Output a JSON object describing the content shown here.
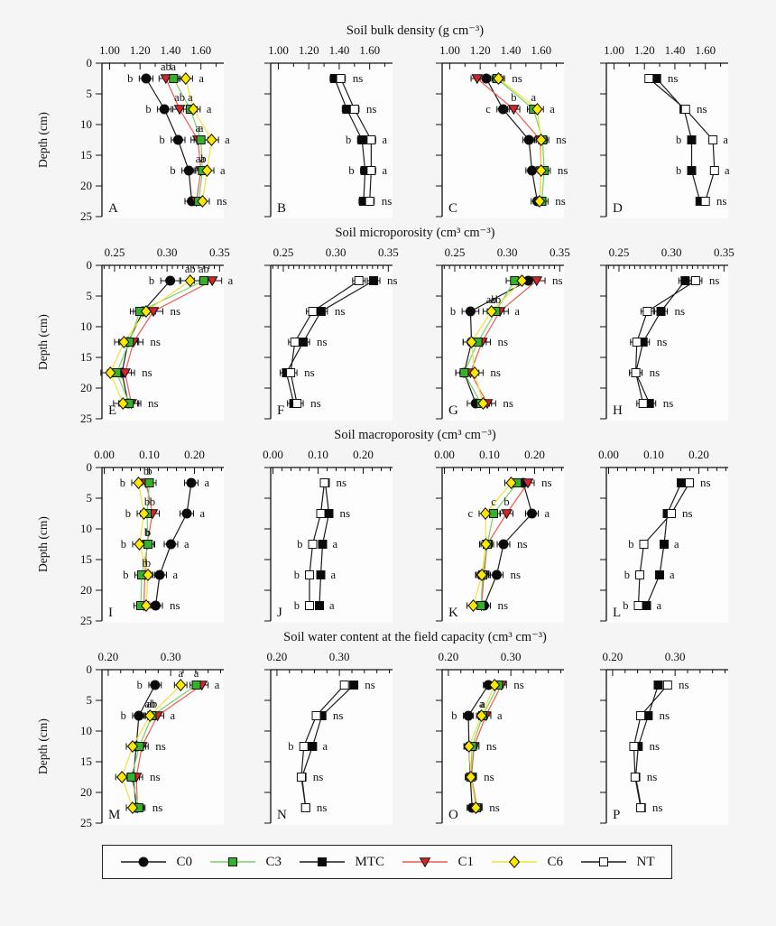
{
  "figure": {
    "ylabel": "Depth (cm)",
    "depth_ticks": [
      0,
      5,
      10,
      15,
      20,
      25
    ],
    "depths": [
      2.5,
      7.5,
      12.5,
      17.5,
      22.5
    ]
  },
  "series_style": {
    "C0": {
      "marker": "circle",
      "fill": "#0a0a0a",
      "line": "#1a1a1a"
    },
    "C1": {
      "marker": "triangle-down",
      "fill": "#d8232a",
      "line": "#ef5a50"
    },
    "C3": {
      "marker": "square",
      "fill": "#33b32a",
      "line": "#79d06a"
    },
    "C6": {
      "marker": "diamond",
      "fill": "#ffe800",
      "line": "#f0e13c"
    },
    "MTC": {
      "marker": "square",
      "fill": "#0a0a0a",
      "line": "#1a1a1a"
    },
    "NT": {
      "marker": "square-open",
      "fill": "#ffffff",
      "line": "#1a1a1a"
    }
  },
  "legend": {
    "items": [
      {
        "key": "C0",
        "label": "C0"
      },
      {
        "key": "C3",
        "label": "C3"
      },
      {
        "key": "MTC",
        "label": "MTC"
      },
      {
        "key": "C1",
        "label": "C1"
      },
      {
        "key": "C6",
        "label": "C6"
      },
      {
        "key": "NT",
        "label": "NT"
      }
    ]
  },
  "chart_data": [
    {
      "type": "line",
      "title": "Soil bulk density (g cm⁻³)",
      "xticks": [
        1.0,
        1.2,
        1.4,
        1.6
      ],
      "xlim": [
        0.95,
        1.75
      ],
      "minor_step": 0.1,
      "tick_decimals": 2,
      "panels": [
        {
          "id": "A",
          "series": [
            "C0",
            "C1",
            "C3",
            "C6"
          ],
          "xerr": 0.045,
          "values": {
            "C0": [
              1.24,
              1.36,
              1.45,
              1.52,
              1.54
            ],
            "C1": [
              1.37,
              1.46,
              1.58,
              1.6,
              1.57
            ],
            "C3": [
              1.42,
              1.53,
              1.6,
              1.61,
              1.585
            ],
            "C6": [
              1.5,
              1.55,
              1.67,
              1.64,
              1.61
            ]
          },
          "sig": [
            [
              "b",
              "ab",
              "a",
              "a"
            ],
            [
              "b",
              "ab",
              "a",
              "a"
            ],
            [
              "b",
              "a",
              "a",
              "a"
            ],
            [
              "b",
              "ab",
              "a",
              "a"
            ],
            "ns"
          ]
        },
        {
          "id": "B",
          "series": [
            "MTC",
            "NT"
          ],
          "xerr": 0.03,
          "values": {
            "MTC": [
              1.37,
              1.45,
              1.55,
              1.57,
              1.56
            ],
            "NT": [
              1.41,
              1.5,
              1.61,
              1.61,
              1.6
            ]
          },
          "sig": [
            "ns",
            "ns",
            [
              "b",
              "a"
            ],
            [
              "b",
              "a"
            ],
            "ns"
          ]
        },
        {
          "id": "C",
          "series": [
            "C0",
            "C1",
            "C3",
            "C6"
          ],
          "xerr": 0.04,
          "values": {
            "C0": [
              1.24,
              1.35,
              1.52,
              1.54,
              1.575
            ],
            "C1": [
              1.18,
              1.42,
              1.595,
              1.6,
              1.59
            ],
            "C3": [
              1.31,
              1.55,
              1.61,
              1.62,
              1.605
            ],
            "C6": [
              1.32,
              1.575,
              1.6,
              1.6,
              1.59
            ]
          },
          "sig": [
            "ns",
            [
              "c",
              "b",
              "a",
              "a"
            ],
            "ns",
            "ns",
            "ns"
          ]
        },
        {
          "id": "D",
          "series": [
            "MTC",
            "NT"
          ],
          "xerr": 0.025,
          "values": {
            "MTC": [
              1.28,
              1.46,
              1.51,
              1.51,
              1.565
            ],
            "NT": [
              1.23,
              1.47,
              1.65,
              1.66,
              1.6
            ]
          },
          "sig": [
            "ns",
            "ns",
            [
              "b",
              "a"
            ],
            [
              "b",
              "a"
            ],
            "ns"
          ]
        }
      ]
    },
    {
      "type": "line",
      "title": "Soil microporosity (cm³ cm⁻³)",
      "xticks": [
        0.25,
        0.3,
        0.35
      ],
      "xlim": [
        0.238,
        0.354
      ],
      "minor_step": 0.005,
      "tick_decimals": 2,
      "panels": [
        {
          "id": "E",
          "series": [
            "C0",
            "C1",
            "C3",
            "C6"
          ],
          "xerr": 0.009,
          "values": {
            "C0": [
              0.303,
              0.277,
              0.263,
              0.257,
              0.263
            ],
            "C1": [
              0.343,
              0.287,
              0.268,
              0.26,
              0.266
            ],
            "C3": [
              0.335,
              0.274,
              0.264,
              0.252,
              0.264
            ],
            "C6": [
              0.322,
              0.28,
              0.259,
              0.246,
              0.258
            ]
          },
          "sig": [
            [
              "b",
              "a",
              "ab",
              "ab"
            ],
            "ns",
            "ns",
            "ns",
            "ns"
          ]
        },
        {
          "id": "F",
          "series": [
            "MTC",
            "NT"
          ],
          "xerr": 0.006,
          "values": {
            "MTC": [
              0.336,
              0.286,
              0.269,
              0.253,
              0.26
            ],
            "NT": [
              0.322,
              0.278,
              0.261,
              0.257,
              0.263
            ]
          },
          "sig": [
            "ns",
            "ns",
            "ns",
            "ns",
            "ns"
          ]
        },
        {
          "id": "G",
          "series": [
            "C0",
            "C1",
            "C3",
            "C6"
          ],
          "xerr": 0.008,
          "values": {
            "C0": [
              0.32,
              0.265,
              0.266,
              0.259,
              0.27
            ],
            "C1": [
              0.328,
              0.293,
              0.276,
              0.265,
              0.281
            ],
            "C3": [
              0.307,
              0.289,
              0.272,
              0.259,
              0.275
            ],
            "C6": [
              0.314,
              0.285,
              0.266,
              0.269,
              0.277
            ]
          },
          "sig": [
            "ns",
            [
              "b",
              "a",
              "ab",
              "ab"
            ],
            "ns",
            "ns",
            "ns"
          ]
        },
        {
          "id": "H",
          "series": [
            "MTC",
            "NT"
          ],
          "xerr": 0.006,
          "values": {
            "MTC": [
              0.313,
              0.29,
              0.273,
              0.266,
              0.279
            ],
            "NT": [
              0.323,
              0.277,
              0.267,
              0.266,
              0.273
            ]
          },
          "sig": [
            "ns",
            "ns",
            "ns",
            "ns",
            "ns"
          ]
        }
      ]
    },
    {
      "type": "line",
      "title": "Soil macroporosity (cm³ cm⁻³)",
      "xticks": [
        0.0,
        0.1,
        0.2
      ],
      "xlim": [
        -0.005,
        0.265
      ],
      "minor_step": 0.02,
      "tick_decimals": 2,
      "panels": [
        {
          "id": "I",
          "series": [
            "C0",
            "C1",
            "C3",
            "C6"
          ],
          "xerr": 0.015,
          "values": {
            "C0": [
              0.193,
              0.183,
              0.148,
              0.123,
              0.114
            ],
            "C1": [
              0.093,
              0.107,
              0.095,
              0.09,
              0.088
            ],
            "C3": [
              0.1,
              0.095,
              0.097,
              0.083,
              0.081
            ],
            "C6": [
              0.076,
              0.088,
              0.078,
              0.097,
              0.093
            ]
          },
          "sig": [
            [
              "a",
              "b",
              "b",
              "b"
            ],
            [
              "a",
              "b",
              "b",
              "b"
            ],
            [
              "a",
              "b",
              "b",
              "b"
            ],
            [
              "a",
              "b",
              "b",
              "b"
            ],
            "ns"
          ]
        },
        {
          "id": "J",
          "series": [
            "MTC",
            "NT"
          ],
          "xerr": 0.008,
          "values": {
            "MTC": [
              0.116,
              0.124,
              0.11,
              0.106,
              0.103
            ],
            "NT": [
              0.114,
              0.106,
              0.088,
              0.081,
              0.081
            ]
          },
          "sig": [
            "ns",
            "ns",
            [
              "a",
              "b"
            ],
            [
              "a",
              "b"
            ],
            [
              "a",
              "b"
            ]
          ]
        },
        {
          "id": "K",
          "series": [
            "C0",
            "C1",
            "C3",
            "C6"
          ],
          "xerr": 0.014,
          "values": {
            "C0": [
              0.175,
              0.194,
              0.131,
              0.116,
              0.088
            ],
            "C1": [
              0.185,
              0.138,
              0.095,
              0.088,
              0.082
            ],
            "C3": [
              0.161,
              0.109,
              0.095,
              0.085,
              0.081
            ],
            "C6": [
              0.148,
              0.091,
              0.092,
              0.083,
              0.064
            ]
          },
          "sig": [
            "ns",
            [
              "a",
              "b",
              "c",
              "c"
            ],
            "ns",
            "ns",
            "ns"
          ]
        },
        {
          "id": "L",
          "series": [
            "MTC",
            "NT"
          ],
          "xerr": 0.008,
          "values": {
            "MTC": [
              0.161,
              0.13,
              0.123,
              0.113,
              0.084
            ],
            "NT": [
              0.179,
              0.139,
              0.078,
              0.069,
              0.066
            ]
          },
          "sig": [
            "ns",
            "ns",
            [
              "a",
              "b"
            ],
            [
              "a",
              "b"
            ],
            [
              "a",
              "b"
            ]
          ]
        }
      ]
    },
    {
      "type": "line",
      "title": "Soil water content at the field capacity (cm³ cm⁻³)",
      "xticks": [
        0.2,
        0.3
      ],
      "xlim": [
        0.19,
        0.385
      ],
      "minor_step": 0.02,
      "tick_decimals": 2,
      "panels": [
        {
          "id": "M",
          "series": [
            "C0",
            "C1",
            "C3",
            "C6"
          ],
          "xerr": 0.01,
          "values": {
            "C0": [
              0.275,
              0.249,
              0.245,
              0.24,
              0.245
            ],
            "C1": [
              0.35,
              0.279,
              0.254,
              0.245,
              0.247
            ],
            "C3": [
              0.341,
              0.27,
              0.25,
              0.237,
              0.249
            ],
            "C6": [
              0.316,
              0.267,
              0.239,
              0.222,
              0.239
            ]
          },
          "sig": [
            [
              "b",
              "a",
              "a",
              "a"
            ],
            [
              "b",
              "a",
              "ab",
              "ab"
            ],
            "ns",
            "ns",
            "ns"
          ]
        },
        {
          "id": "N",
          "series": [
            "MTC",
            "NT"
          ],
          "xerr": 0.006,
          "values": {
            "MTC": [
              0.323,
              0.272,
              0.257,
              0.24,
              0.246
            ],
            "NT": [
              0.308,
              0.263,
              0.243,
              0.239,
              0.246
            ]
          },
          "sig": [
            "ns",
            "ns",
            [
              "a",
              "b"
            ],
            "ns",
            "ns"
          ]
        },
        {
          "id": "O",
          "series": [
            "C0",
            "C1",
            "C3",
            "C6"
          ],
          "xerr": 0.008,
          "values": {
            "C0": [
              0.264,
              0.232,
              0.233,
              0.235,
              0.238
            ],
            "C1": [
              0.285,
              0.26,
              0.241,
              0.237,
              0.246
            ],
            "C3": [
              0.28,
              0.255,
              0.238,
              0.236,
              0.245
            ],
            "C6": [
              0.274,
              0.253,
              0.233,
              0.236,
              0.244
            ]
          },
          "sig": [
            "ns",
            [
              "b",
              "a",
              "a",
              "a"
            ],
            "ns",
            "ns",
            "ns"
          ]
        },
        {
          "id": "P",
          "series": [
            "MTC",
            "NT"
          ],
          "xerr": 0.006,
          "values": {
            "MTC": [
              0.273,
              0.257,
              0.241,
              0.237,
              0.246
            ],
            "NT": [
              0.288,
              0.245,
              0.234,
              0.236,
              0.245
            ]
          },
          "sig": [
            "ns",
            "ns",
            "ns",
            "ns",
            "ns"
          ]
        }
      ]
    }
  ]
}
